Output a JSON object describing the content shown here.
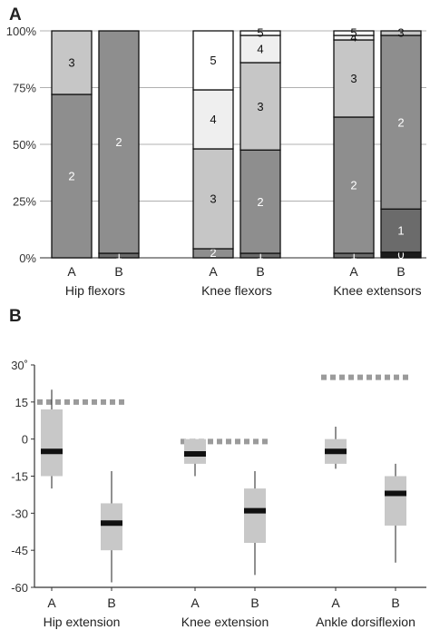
{
  "chart_data": [
    {
      "panel": "A",
      "type": "bar",
      "stacked": true,
      "percent": true,
      "ylim": [
        0,
        100
      ],
      "yticks": [
        "0%",
        "25%",
        "50%",
        "75%",
        "100%"
      ],
      "grid": true,
      "groups": [
        {
          "name": "Hip flexors",
          "bars": [
            {
              "label": "A",
              "segments": [
                {
                  "grade": "2",
                  "value": 72
                },
                {
                  "grade": "3",
                  "value": 28
                }
              ]
            },
            {
              "label": "B",
              "segments": [
                {
                  "grade": "1",
                  "value": 2
                },
                {
                  "grade": "2",
                  "value": 98
                }
              ]
            }
          ]
        },
        {
          "name": "Knee flexors",
          "bars": [
            {
              "label": "A",
              "segments": [
                {
                  "grade": "2",
                  "value": 4
                },
                {
                  "grade": "3",
                  "value": 44
                },
                {
                  "grade": "4",
                  "value": 26
                },
                {
                  "grade": "5",
                  "value": 26
                }
              ]
            },
            {
              "label": "B",
              "segments": [
                {
                  "grade": "1",
                  "value": 2
                },
                {
                  "grade": "2",
                  "value": 45.5
                },
                {
                  "grade": "3",
                  "value": 38.5
                },
                {
                  "grade": "4",
                  "value": 12
                },
                {
                  "grade": "5",
                  "value": 2
                }
              ]
            }
          ]
        },
        {
          "name": "Knee extensors",
          "bars": [
            {
              "label": "A",
              "segments": [
                {
                  "grade": "1",
                  "value": 2
                },
                {
                  "grade": "2",
                  "value": 60
                },
                {
                  "grade": "3",
                  "value": 34
                },
                {
                  "grade": "4",
                  "value": 2
                },
                {
                  "grade": "5",
                  "value": 2
                }
              ]
            },
            {
              "label": "B",
              "segments": [
                {
                  "grade": "0",
                  "value": 2.5
                },
                {
                  "grade": "1",
                  "value": 19
                },
                {
                  "grade": "2",
                  "value": 76.5
                },
                {
                  "grade": "3",
                  "value": 2
                }
              ]
            }
          ]
        }
      ],
      "colors": {
        "0": "#1c1c1c",
        "1": "#6b6b6b",
        "2": "#8e8e8e",
        "3": "#c6c6c6",
        "4": "#efefef",
        "5": "#ffffff"
      }
    },
    {
      "panel": "B",
      "type": "box",
      "ylim": [
        -60,
        30
      ],
      "yticks": [
        "30˚",
        "15",
        "0",
        "-15",
        "-30",
        "-45",
        "-60"
      ],
      "groups": [
        {
          "name": "Hip extension",
          "reference": 15,
          "boxes": [
            {
              "label": "A",
              "min": -20,
              "q1": -15,
              "median": -5,
              "q3": 12,
              "max": 20
            },
            {
              "label": "B",
              "min": -58,
              "q1": -45,
              "median": -34,
              "q3": -26,
              "max": -13
            }
          ]
        },
        {
          "name": "Knee extension",
          "reference": -1,
          "boxes": [
            {
              "label": "A",
              "min": -15,
              "q1": -10,
              "median": -6,
              "q3": 0,
              "max": 0
            },
            {
              "label": "B",
              "min": -55,
              "q1": -42,
              "median": -29,
              "q3": -20,
              "max": -13
            }
          ]
        },
        {
          "name": "Ankle dorsiflexion",
          "reference": 25,
          "boxes": [
            {
              "label": "A",
              "min": -12,
              "q1": -10,
              "median": -5,
              "q3": 0,
              "max": 5
            },
            {
              "label": "B",
              "min": -50,
              "q1": -35,
              "median": -22,
              "q3": -15,
              "max": -10
            }
          ]
        }
      ]
    }
  ]
}
